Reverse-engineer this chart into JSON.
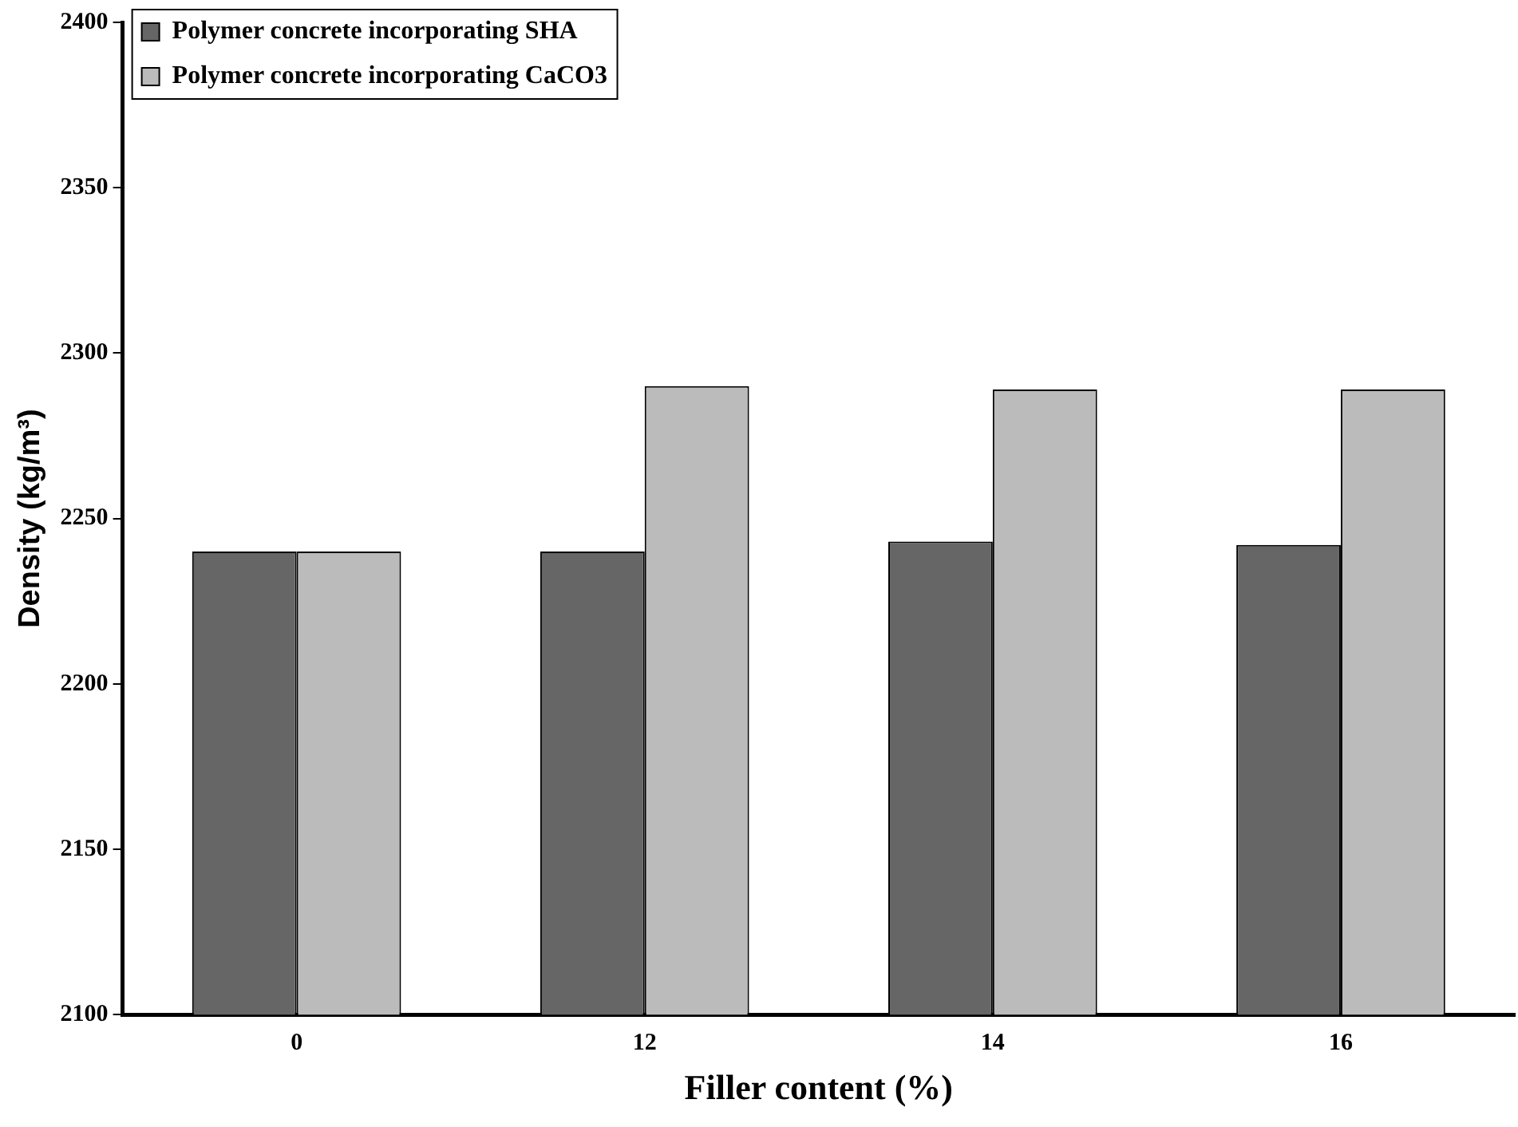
{
  "chart_data": {
    "type": "bar",
    "xlabel": "Filler content (%)",
    "ylabel": "Density (kg/m³)",
    "categories": [
      "0",
      "12",
      "14",
      "16"
    ],
    "series": [
      {
        "name": "Polymer concrete incorporating SHA",
        "color": "#666666",
        "values": [
          2240,
          2240,
          2243,
          2242
        ]
      },
      {
        "name": "Polymer concrete incorporating CaCO3",
        "color": "#bbbbbb",
        "values": [
          2240,
          2290,
          2289,
          2289
        ]
      }
    ],
    "ylim": [
      2100,
      2400
    ],
    "yticks": [
      2100,
      2150,
      2200,
      2250,
      2300,
      2350,
      2400
    ],
    "grid": false,
    "legend": "top left"
  }
}
